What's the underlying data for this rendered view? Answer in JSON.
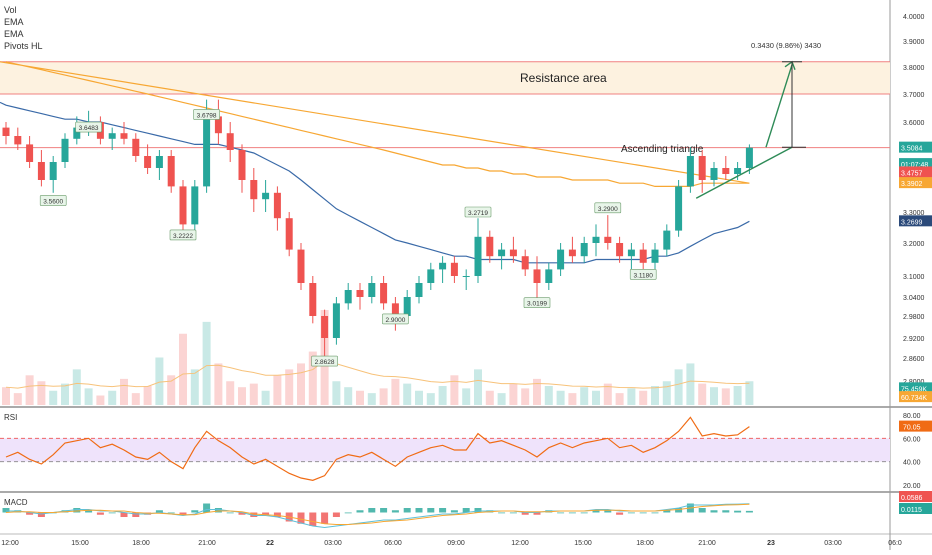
{
  "legend": [
    "Vol",
    "EMA",
    "EMA",
    "Pivots HL"
  ],
  "colors": {
    "up": "#26a69a",
    "down": "#ef5350",
    "ema_slow": "#f7a733",
    "ema_fast": "#3a6aa8",
    "vol_ma": "#f7c27a",
    "resistance_fill": "#fdf2e0",
    "resistance_line": "#f08080",
    "rsi": "#f06b14",
    "rsi_band": "#efe3fb",
    "macd_line": "#5ec0d8",
    "signal_line": "#f7a733",
    "arrow": "#2e8b57",
    "measure": "#333333"
  },
  "price_axis": {
    "ticks": [
      "4.0000",
      "3.9000",
      "3.8000",
      "3.7000",
      "3.6000",
      "3.3000",
      "3.2000",
      "3.1000",
      "3.0400",
      "2.9800",
      "2.9200",
      "2.8600",
      "2.8000"
    ],
    "badges": [
      {
        "text": "3.5084",
        "value": 3.5084,
        "color": "#26a69a"
      },
      {
        "text": "01:07:48",
        "value": 3.453,
        "color": "#26a69a"
      },
      {
        "text": "3.4757",
        "value": 3.4252,
        "color": "#ef5350"
      },
      {
        "text": "3.3902",
        "value": 3.3902,
        "color": "#f7a733"
      },
      {
        "text": "3.2699",
        "value": 3.2699,
        "color": "#2b4a7a"
      },
      {
        "text": "75.459K",
        "value": 2.7768,
        "color": "#26a69a"
      },
      {
        "text": "60.734K",
        "value": 2.7491,
        "color": "#f7a733"
      }
    ]
  },
  "rsi_axis": {
    "ticks": [
      "80.00",
      "60.00",
      "40.00",
      "20.00"
    ],
    "badges": [
      {
        "text": "70.05",
        "value": 70.05,
        "color": "#f06b14"
      }
    ]
  },
  "macd_axis": {
    "badges": [
      {
        "text": "0.0586",
        "value": 0.0586,
        "color": "#ef5350"
      },
      {
        "text": "0.0115",
        "value": 0.0115,
        "color": "#26a69a"
      }
    ]
  },
  "time_axis": [
    "12:00",
    "15:00",
    "18:00",
    "21:00",
    "22",
    "03:00",
    "06:00",
    "09:00",
    "12:00",
    "15:00",
    "18:00",
    "21:00",
    "23",
    "03:00",
    "06:0"
  ],
  "annotations": {
    "resistance": "Resistance area",
    "triangle": "Ascending triangle",
    "measure": "0.3430 (9.86%) 3430"
  },
  "pivots": [
    {
      "text": "3.5600",
      "bar": 4,
      "price": 3.336
    },
    {
      "text": "3.6483",
      "bar": 7,
      "price": 3.582
    },
    {
      "text": "3.2222",
      "bar": 15,
      "price": 3.226
    },
    {
      "text": "3.6798",
      "bar": 17,
      "price": 3.627
    },
    {
      "text": "2.8628",
      "bar": 27,
      "price": 2.852
    },
    {
      "text": "2.9000",
      "bar": 33,
      "price": 2.972
    },
    {
      "text": "3.2719",
      "bar": 40,
      "price": 3.3
    },
    {
      "text": "3.0199",
      "bar": 45,
      "price": 3.022
    },
    {
      "text": "3.2900",
      "bar": 51,
      "price": 3.313
    },
    {
      "text": "3.1180",
      "bar": 54,
      "price": 3.105
    }
  ],
  "chart_data": {
    "type": "candlestick",
    "price_levels": {
      "resistance_low": 3.7,
      "resistance_high": 3.82,
      "breakout_line": 3.5084
    },
    "candles": [
      [
        3.58,
        3.6,
        3.52,
        3.55
      ],
      [
        3.55,
        3.58,
        3.5,
        3.52
      ],
      [
        3.52,
        3.55,
        3.44,
        3.46
      ],
      [
        3.46,
        3.5,
        3.38,
        3.4
      ],
      [
        3.4,
        3.48,
        3.36,
        3.46
      ],
      [
        3.46,
        3.56,
        3.44,
        3.54
      ],
      [
        3.54,
        3.62,
        3.52,
        3.58
      ],
      [
        3.58,
        3.64,
        3.55,
        3.6
      ],
      [
        3.6,
        3.62,
        3.52,
        3.54
      ],
      [
        3.54,
        3.58,
        3.5,
        3.56
      ],
      [
        3.56,
        3.6,
        3.52,
        3.54
      ],
      [
        3.54,
        3.56,
        3.46,
        3.48
      ],
      [
        3.48,
        3.52,
        3.42,
        3.44
      ],
      [
        3.44,
        3.5,
        3.4,
        3.48
      ],
      [
        3.48,
        3.5,
        3.36,
        3.38
      ],
      [
        3.38,
        3.4,
        3.22,
        3.26
      ],
      [
        3.26,
        3.4,
        3.24,
        3.38
      ],
      [
        3.38,
        3.68,
        3.36,
        3.62
      ],
      [
        3.62,
        3.68,
        3.52,
        3.56
      ],
      [
        3.56,
        3.6,
        3.46,
        3.5
      ],
      [
        3.5,
        3.52,
        3.36,
        3.4
      ],
      [
        3.4,
        3.44,
        3.3,
        3.34
      ],
      [
        3.34,
        3.4,
        3.3,
        3.36
      ],
      [
        3.36,
        3.38,
        3.24,
        3.28
      ],
      [
        3.28,
        3.3,
        3.16,
        3.18
      ],
      [
        3.18,
        3.2,
        3.06,
        3.08
      ],
      [
        3.08,
        3.1,
        2.96,
        2.98
      ],
      [
        2.98,
        3.0,
        2.86,
        2.92
      ],
      [
        2.92,
        3.04,
        2.9,
        3.02
      ],
      [
        3.02,
        3.08,
        3.0,
        3.06
      ],
      [
        3.06,
        3.08,
        3.0,
        3.04
      ],
      [
        3.04,
        3.1,
        3.02,
        3.08
      ],
      [
        3.08,
        3.1,
        3.0,
        3.02
      ],
      [
        3.02,
        3.04,
        2.94,
        2.98
      ],
      [
        2.98,
        3.06,
        2.96,
        3.04
      ],
      [
        3.04,
        3.1,
        3.02,
        3.08
      ],
      [
        3.08,
        3.14,
        3.06,
        3.12
      ],
      [
        3.12,
        3.16,
        3.08,
        3.14
      ],
      [
        3.14,
        3.16,
        3.08,
        3.1
      ],
      [
        3.1,
        3.12,
        3.06,
        3.1
      ],
      [
        3.1,
        3.28,
        3.08,
        3.22
      ],
      [
        3.22,
        3.24,
        3.14,
        3.16
      ],
      [
        3.16,
        3.2,
        3.12,
        3.18
      ],
      [
        3.18,
        3.22,
        3.14,
        3.16
      ],
      [
        3.16,
        3.18,
        3.1,
        3.12
      ],
      [
        3.12,
        3.16,
        3.02,
        3.08
      ],
      [
        3.08,
        3.14,
        3.06,
        3.12
      ],
      [
        3.12,
        3.2,
        3.1,
        3.18
      ],
      [
        3.18,
        3.22,
        3.14,
        3.16
      ],
      [
        3.16,
        3.22,
        3.14,
        3.2
      ],
      [
        3.2,
        3.26,
        3.16,
        3.22
      ],
      [
        3.22,
        3.29,
        3.18,
        3.2
      ],
      [
        3.2,
        3.22,
        3.14,
        3.16
      ],
      [
        3.16,
        3.2,
        3.12,
        3.18
      ],
      [
        3.18,
        3.2,
        3.12,
        3.14
      ],
      [
        3.14,
        3.2,
        3.12,
        3.18
      ],
      [
        3.18,
        3.26,
        3.16,
        3.24
      ],
      [
        3.24,
        3.4,
        3.22,
        3.38
      ],
      [
        3.38,
        3.51,
        3.36,
        3.48
      ],
      [
        3.48,
        3.5,
        3.36,
        3.4
      ],
      [
        3.4,
        3.46,
        3.38,
        3.44
      ],
      [
        3.44,
        3.48,
        3.4,
        3.42
      ],
      [
        3.42,
        3.46,
        3.4,
        3.44
      ],
      [
        3.44,
        3.52,
        3.42,
        3.5084
      ]
    ],
    "ema_fast": [
      3.66,
      3.65,
      3.64,
      3.63,
      3.62,
      3.61,
      3.61,
      3.6,
      3.6,
      3.59,
      3.58,
      3.57,
      3.56,
      3.55,
      3.54,
      3.53,
      3.52,
      3.52,
      3.52,
      3.51,
      3.5,
      3.49,
      3.47,
      3.45,
      3.43,
      3.4,
      3.37,
      3.34,
      3.31,
      3.29,
      3.27,
      3.25,
      3.23,
      3.21,
      3.2,
      3.19,
      3.18,
      3.17,
      3.16,
      3.16,
      3.15,
      3.15,
      3.15,
      3.15,
      3.14,
      3.14,
      3.14,
      3.14,
      3.14,
      3.14,
      3.15,
      3.15,
      3.15,
      3.15,
      3.15,
      3.16,
      3.16,
      3.17,
      3.19,
      3.21,
      3.23,
      3.24,
      3.25,
      3.27
    ],
    "ema_slow": [
      3.82,
      3.81,
      3.8,
      3.79,
      3.78,
      3.77,
      3.76,
      3.75,
      3.74,
      3.73,
      3.72,
      3.71,
      3.7,
      3.69,
      3.68,
      3.67,
      3.66,
      3.65,
      3.64,
      3.63,
      3.62,
      3.61,
      3.6,
      3.59,
      3.58,
      3.57,
      3.56,
      3.55,
      3.54,
      3.53,
      3.52,
      3.51,
      3.5,
      3.49,
      3.48,
      3.47,
      3.46,
      3.45,
      3.45,
      3.44,
      3.44,
      3.43,
      3.43,
      3.42,
      3.42,
      3.41,
      3.41,
      3.41,
      3.4,
      3.4,
      3.4,
      3.4,
      3.39,
      3.39,
      3.39,
      3.38,
      3.38,
      3.38,
      3.38,
      3.39,
      3.39,
      3.39,
      3.39,
      3.39
    ],
    "volume": [
      15,
      10,
      25,
      20,
      12,
      18,
      30,
      14,
      8,
      12,
      22,
      10,
      16,
      40,
      25,
      60,
      30,
      70,
      35,
      20,
      15,
      18,
      12,
      25,
      30,
      35,
      45,
      80,
      20,
      15,
      12,
      10,
      14,
      22,
      18,
      12,
      10,
      16,
      25,
      14,
      30,
      12,
      10,
      18,
      14,
      22,
      16,
      12,
      10,
      15,
      12,
      18,
      10,
      14,
      12,
      16,
      20,
      30,
      35,
      18,
      15,
      14,
      16,
      20
    ],
    "rsi": [
      44,
      48,
      42,
      38,
      46,
      56,
      58,
      60,
      52,
      55,
      50,
      44,
      42,
      48,
      40,
      34,
      52,
      66,
      58,
      52,
      44,
      38,
      42,
      36,
      30,
      26,
      24,
      28,
      42,
      46,
      44,
      48,
      42,
      36,
      44,
      48,
      52,
      54,
      50,
      50,
      64,
      56,
      58,
      54,
      50,
      44,
      52,
      56,
      52,
      56,
      58,
      60,
      52,
      54,
      48,
      52,
      58,
      66,
      78,
      62,
      64,
      62,
      63,
      70.05
    ],
    "macd": [
      0.01,
      0.01,
      0.0,
      -0.01,
      0.0,
      0.01,
      0.02,
      0.02,
      0.01,
      0.01,
      0.0,
      -0.01,
      -0.01,
      0.0,
      -0.01,
      -0.02,
      -0.01,
      0.02,
      0.02,
      0.01,
      0.0,
      -0.02,
      -0.02,
      -0.03,
      -0.05,
      -0.07,
      -0.09,
      -0.1,
      -0.09,
      -0.08,
      -0.07,
      -0.06,
      -0.05,
      -0.05,
      -0.04,
      -0.03,
      -0.02,
      -0.01,
      -0.01,
      0.0,
      0.01,
      0.01,
      0.01,
      0.01,
      0.0,
      0.0,
      0.01,
      0.01,
      0.01,
      0.01,
      0.02,
      0.02,
      0.01,
      0.01,
      0.01,
      0.01,
      0.02,
      0.03,
      0.05,
      0.05,
      0.05,
      0.055,
      0.056,
      0.0586
    ],
    "signal": [
      0.0,
      0.005,
      0.005,
      0.0,
      0.0,
      0.005,
      0.01,
      0.015,
      0.015,
      0.01,
      0.01,
      0.0,
      -0.005,
      -0.005,
      -0.01,
      -0.015,
      -0.015,
      0.0,
      0.01,
      0.01,
      0.005,
      -0.01,
      -0.015,
      -0.02,
      -0.03,
      -0.045,
      -0.06,
      -0.075,
      -0.08,
      -0.08,
      -0.075,
      -0.07,
      -0.06,
      -0.055,
      -0.05,
      -0.04,
      -0.03,
      -0.02,
      -0.015,
      -0.01,
      0.0,
      0.005,
      0.01,
      0.01,
      0.005,
      0.005,
      0.005,
      0.01,
      0.01,
      0.01,
      0.015,
      0.015,
      0.015,
      0.01,
      0.01,
      0.01,
      0.015,
      0.02,
      0.03,
      0.04,
      0.045,
      0.05,
      0.052,
      0.055
    ]
  }
}
